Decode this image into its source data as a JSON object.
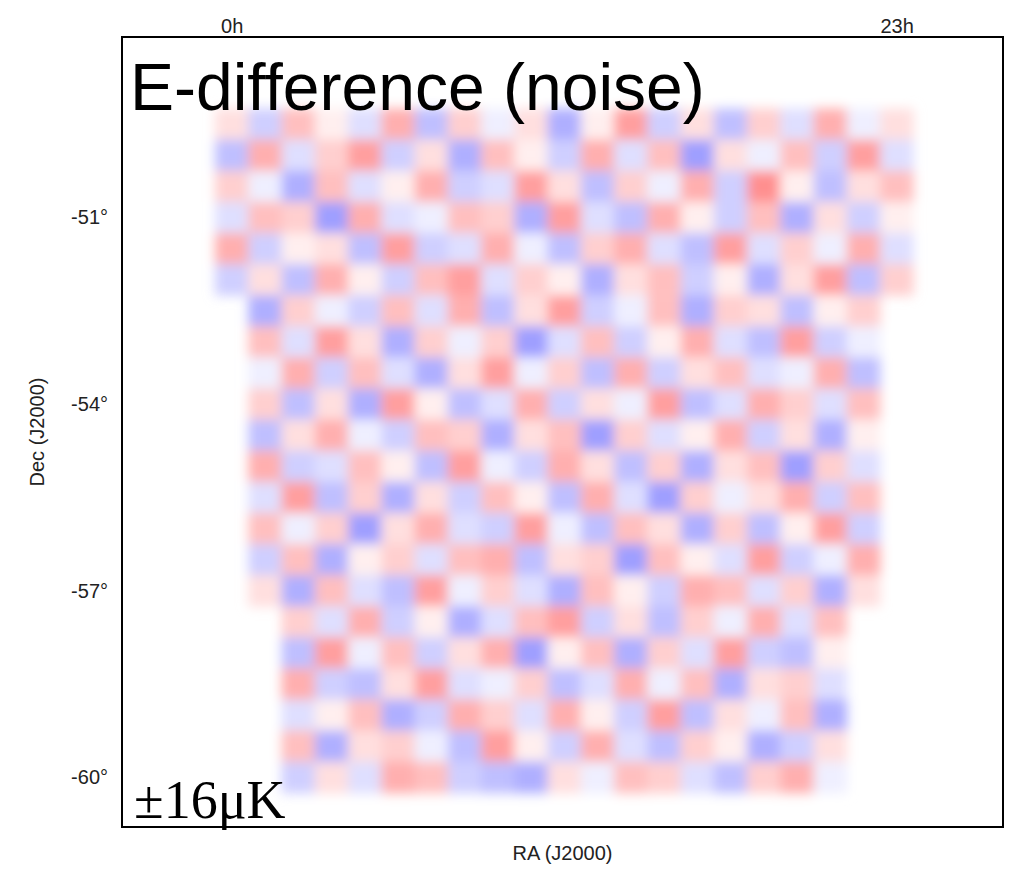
{
  "chart_data": {
    "type": "heatmap",
    "title": "E-difference (noise)",
    "x_label": "RA (J2000)",
    "y_label": "Dec (J2000)",
    "xlim": [
      24.165,
      22.84
    ],
    "ylim": [
      -60.8,
      -48.1
    ],
    "xticks": [
      {
        "value": 24,
        "label": "0h"
      },
      {
        "value": 23,
        "label": "23h"
      }
    ],
    "yticks": [
      {
        "value": -51,
        "label": "-51°"
      },
      {
        "value": -54,
        "label": "-54°"
      },
      {
        "value": -57,
        "label": "-57°"
      },
      {
        "value": -60,
        "label": "-60°"
      }
    ],
    "colorbar": {
      "range": [
        -16,
        16
      ],
      "label": "±16μK"
    },
    "x": [
      24.0,
      23.95,
      23.9,
      23.85,
      23.8,
      23.75,
      23.7,
      23.65,
      23.6,
      23.55,
      23.5,
      23.45,
      23.4,
      23.35,
      23.3,
      23.25,
      23.2,
      23.15,
      23.1,
      23.05,
      23.0
    ],
    "y": [
      -49.5,
      -50.0,
      -50.5,
      -51.0,
      -51.5,
      -52.0,
      -52.5,
      -53.0,
      -53.5,
      -54.0,
      -54.5,
      -55.0,
      -55.5,
      -56.0,
      -56.5,
      -57.0,
      -57.5,
      -58.0,
      -58.5,
      -59.0,
      -59.5,
      -60.0
    ],
    "values": [
      [
        2,
        -3,
        4,
        1,
        -2,
        5,
        -4,
        3,
        -1,
        2,
        -5,
        1,
        6,
        -3,
        2,
        -4,
        3,
        -2,
        5,
        -1,
        2
      ],
      [
        -4,
        5,
        -2,
        3,
        6,
        -3,
        2,
        -5,
        4,
        1,
        -3,
        5,
        -2,
        4,
        -6,
        2,
        -1,
        4,
        -3,
        6,
        -2
      ],
      [
        3,
        -1,
        -5,
        4,
        -2,
        1,
        5,
        -3,
        -2,
        6,
        2,
        -4,
        3,
        -1,
        5,
        -3,
        7,
        1,
        -4,
        2,
        4
      ],
      [
        -2,
        4,
        3,
        -6,
        5,
        -2,
        -1,
        4,
        3,
        -5,
        6,
        -2,
        -4,
        5,
        1,
        -3,
        4,
        -5,
        2,
        -3,
        1
      ],
      [
        5,
        -3,
        1,
        2,
        -4,
        6,
        -3,
        -2,
        5,
        -1,
        -4,
        3,
        5,
        -2,
        -4,
        6,
        -2,
        3,
        -1,
        5,
        -2
      ],
      [
        -3,
        2,
        -4,
        5,
        1,
        -3,
        4,
        6,
        -2,
        3,
        1,
        -5,
        2,
        4,
        -3,
        1,
        -5,
        2,
        6,
        -4,
        3
      ],
      [
        null,
        -5,
        3,
        -1,
        -3,
        4,
        -2,
        5,
        -4,
        2,
        6,
        -3,
        -1,
        4,
        -5,
        3,
        2,
        -4,
        1,
        3,
        null
      ],
      [
        null,
        4,
        -2,
        6,
        2,
        -5,
        3,
        -1,
        3,
        -6,
        -2,
        4,
        -3,
        1,
        5,
        -2,
        -4,
        6,
        -3,
        -1,
        null
      ],
      [
        null,
        -1,
        5,
        -3,
        4,
        -2,
        -5,
        2,
        6,
        -1,
        3,
        -4,
        5,
        -3,
        2,
        4,
        -2,
        -1,
        5,
        -4,
        null
      ],
      [
        null,
        3,
        -4,
        2,
        -5,
        6,
        1,
        -4,
        -2,
        5,
        -3,
        2,
        -1,
        6,
        -4,
        -2,
        5,
        3,
        -2,
        4,
        null
      ],
      [
        null,
        -4,
        2,
        5,
        -1,
        -3,
        4,
        3,
        -5,
        2,
        4,
        -6,
        3,
        -2,
        1,
        5,
        -3,
        2,
        -5,
        1,
        null
      ],
      [
        null,
        5,
        -3,
        -2,
        4,
        1,
        -4,
        6,
        -1,
        -3,
        5,
        2,
        -4,
        3,
        -5,
        2,
        4,
        -6,
        3,
        -2,
        null
      ],
      [
        null,
        -2,
        6,
        -4,
        3,
        -5,
        2,
        -3,
        4,
        1,
        -4,
        5,
        -2,
        -6,
        3,
        -1,
        2,
        5,
        -3,
        4,
        null
      ],
      [
        null,
        4,
        -1,
        3,
        -6,
        2,
        5,
        -2,
        -3,
        6,
        -1,
        -4,
        4,
        2,
        -5,
        3,
        -4,
        1,
        6,
        -3,
        null
      ],
      [
        null,
        -3,
        4,
        -5,
        1,
        3,
        -2,
        4,
        5,
        -4,
        2,
        3,
        -6,
        4,
        1,
        -2,
        6,
        -3,
        -1,
        5,
        null
      ],
      [
        null,
        2,
        -5,
        4,
        -2,
        -4,
        6,
        -1,
        3,
        -2,
        -5,
        4,
        1,
        -3,
        5,
        4,
        -2,
        3,
        -5,
        2,
        null
      ],
      [
        null,
        null,
        3,
        -2,
        5,
        -3,
        1,
        -5,
        -2,
        4,
        6,
        -3,
        2,
        -4,
        3,
        -1,
        5,
        -2,
        4,
        null,
        null
      ],
      [
        null,
        null,
        -4,
        6,
        -1,
        4,
        -3,
        2,
        5,
        -6,
        1,
        4,
        -5,
        3,
        -2,
        6,
        -3,
        -4,
        1,
        null,
        null
      ],
      [
        null,
        null,
        5,
        -3,
        -4,
        2,
        6,
        -2,
        -1,
        3,
        -4,
        -2,
        5,
        -1,
        4,
        -5,
        2,
        3,
        -2,
        null,
        null
      ],
      [
        null,
        null,
        -2,
        1,
        4,
        -5,
        -3,
        5,
        3,
        -2,
        5,
        1,
        -3,
        6,
        -4,
        2,
        -1,
        4,
        -5,
        null,
        null
      ],
      [
        null,
        null,
        4,
        -5,
        2,
        3,
        -1,
        -4,
        6,
        1,
        -3,
        5,
        -2,
        -4,
        3,
        1,
        -5,
        -3,
        2,
        null,
        null
      ],
      [
        null,
        null,
        -3,
        2,
        -2,
        5,
        4,
        -3,
        -4,
        -5,
        2,
        -1,
        4,
        3,
        -2,
        -4,
        3,
        5,
        -1,
        null,
        null
      ]
    ]
  }
}
